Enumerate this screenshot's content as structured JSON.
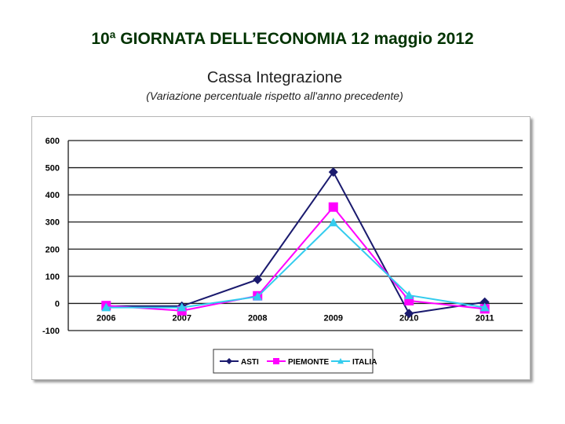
{
  "header": {
    "title": "10ª GIORNATA DELL’ECONOMIA  12 maggio 2012",
    "subtitle": "Cassa Integrazione",
    "note": "(Variazione percentuale rispetto all'anno precedente)"
  },
  "chart_data": {
    "type": "line",
    "x": [
      "2006",
      "2007",
      "2008",
      "2009",
      "2010",
      "2011"
    ],
    "ylim": [
      -100,
      600
    ],
    "yticks": [
      -100,
      0,
      100,
      200,
      300,
      400,
      500,
      600
    ],
    "grid": true,
    "legend_position": "bottom-center",
    "series": [
      {
        "name": "ASTI",
        "color": "#1a1a6e",
        "marker": "diamond",
        "values": [
          -10,
          -10,
          88,
          484,
          -37,
          5
        ]
      },
      {
        "name": "PIEMONTE",
        "color": "#ff00ff",
        "marker": "square",
        "values": [
          -8,
          -27,
          28,
          355,
          10,
          -20
        ]
      },
      {
        "name": "ITALIA",
        "color": "#33ccee",
        "marker": "triangle",
        "values": [
          -15,
          -15,
          25,
          298,
          30,
          -15
        ]
      }
    ]
  }
}
